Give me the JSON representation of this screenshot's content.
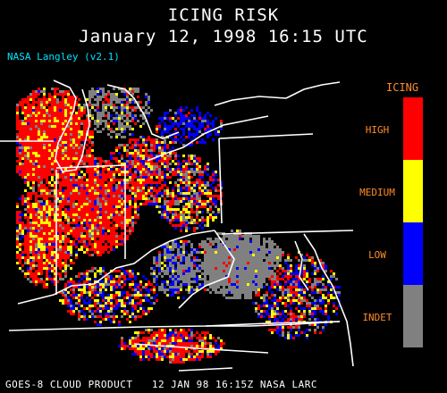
{
  "header": {
    "title": "ICING RISK",
    "subtitle": "January 12, 1998 16:15 UTC",
    "credit": "NASA Langley (v2.1)"
  },
  "legend": {
    "title": "ICING",
    "levels": [
      {
        "label": "HIGH",
        "color": "#ff0000"
      },
      {
        "label": "MEDIUM",
        "color": "#ffff00"
      },
      {
        "label": "LOW",
        "color": "#0000ff"
      },
      {
        "label": "INDET",
        "color": "#808080"
      }
    ]
  },
  "footer": "GOES-8 CLOUD PRODUCT   12 JAN 98 16:15Z NASA LARC"
}
